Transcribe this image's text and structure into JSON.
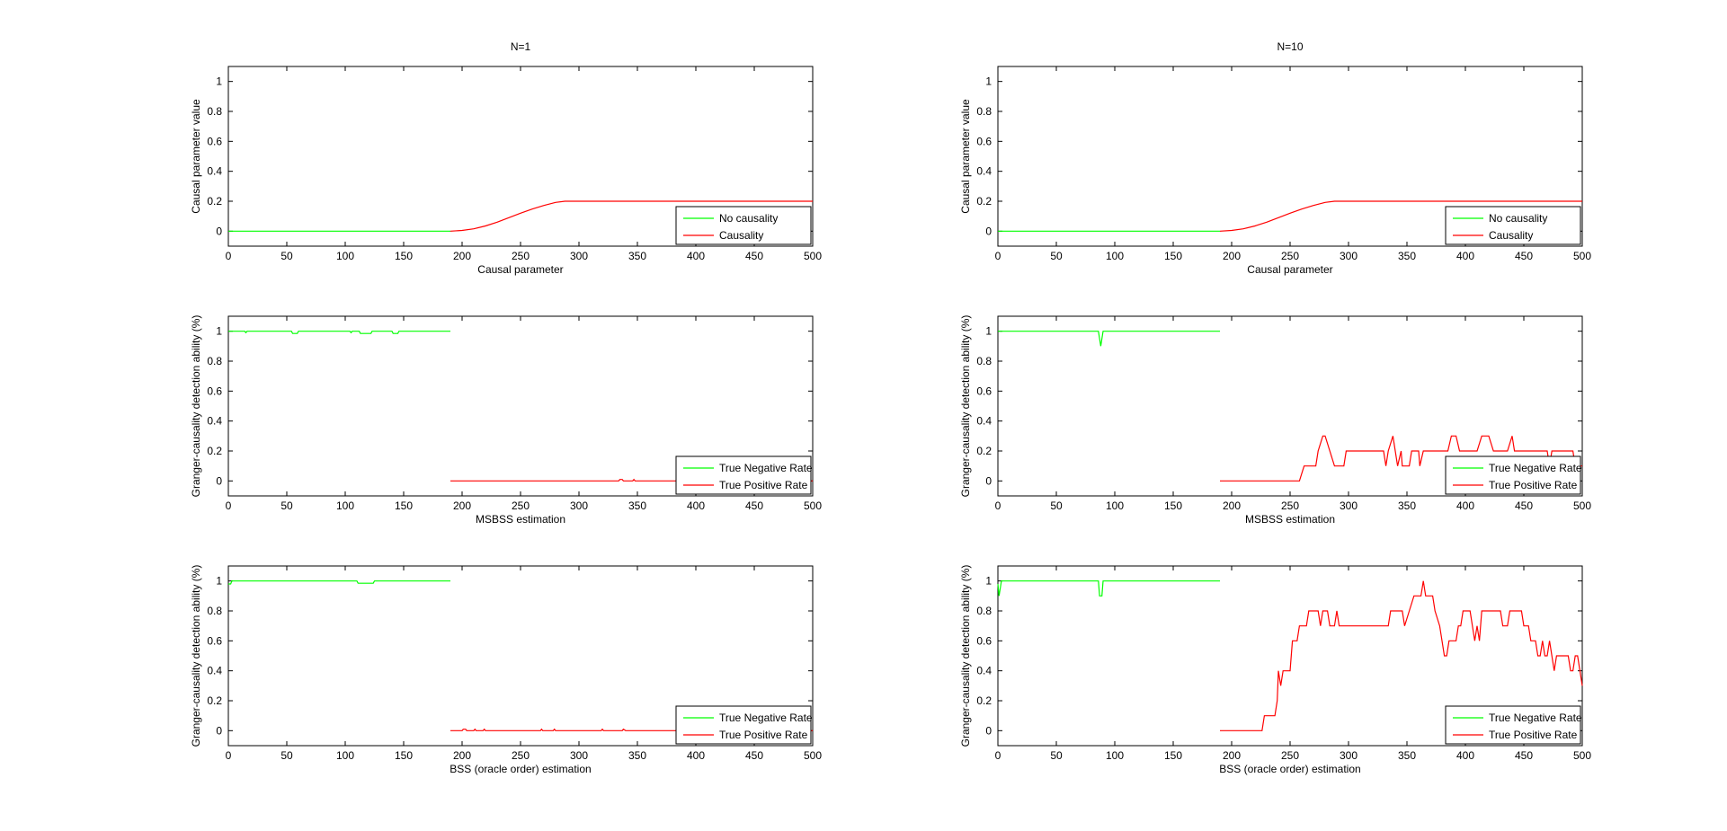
{
  "figure": {
    "columns": [
      {
        "title": "N=1"
      },
      {
        "title": "N=10"
      }
    ]
  },
  "colors": {
    "negative": "#00ff00",
    "positive": "#ff0000",
    "axis": "#000000"
  },
  "chart_data": [
    {
      "type": "line",
      "panel": "top-left",
      "title": "N=1",
      "xlabel": "Causal parameter",
      "ylabel": "Causal parameter value",
      "xlim": [
        0,
        500
      ],
      "ylim": [
        -0.1,
        1.1
      ],
      "xticks": [
        0,
        50,
        100,
        150,
        200,
        250,
        300,
        350,
        400,
        450,
        500
      ],
      "yticks": [
        0,
        0.2,
        0.4,
        0.6,
        0.8,
        1
      ],
      "legend": "bottom-right",
      "grid": false,
      "series": [
        {
          "name": "No causality",
          "color": "#00ff00",
          "points": [
            [
              0,
              0
            ],
            [
              190,
              0
            ]
          ]
        },
        {
          "name": "Causality",
          "color": "#ff0000",
          "points": [
            [
              190,
              0
            ],
            [
              200,
              0.005
            ],
            [
              210,
              0.016
            ],
            [
              220,
              0.035
            ],
            [
              230,
              0.06
            ],
            [
              240,
              0.09
            ],
            [
              250,
              0.12
            ],
            [
              260,
              0.148
            ],
            [
              270,
              0.172
            ],
            [
              280,
              0.192
            ],
            [
              288,
              0.2
            ],
            [
              500,
              0.2
            ]
          ]
        }
      ]
    },
    {
      "type": "line",
      "panel": "middle-left",
      "title": "",
      "xlabel": "MSBSS estimation",
      "ylabel": "Granger-causality detection ability (%)",
      "xlim": [
        0,
        500
      ],
      "ylim": [
        -0.1,
        1.1
      ],
      "xticks": [
        0,
        50,
        100,
        150,
        200,
        250,
        300,
        350,
        400,
        450,
        500
      ],
      "yticks": [
        0,
        0.2,
        0.4,
        0.6,
        0.8,
        1
      ],
      "legend": "bottom-right",
      "grid": false,
      "series": [
        {
          "name": "True Negative Rate",
          "color": "#00ff00",
          "points": [
            [
              0,
              1
            ],
            [
              14,
              1
            ],
            [
              15,
              0.99
            ],
            [
              16,
              1
            ],
            [
              54,
              1
            ],
            [
              55,
              0.985
            ],
            [
              59,
              0.985
            ],
            [
              60,
              1
            ],
            [
              104,
              1
            ],
            [
              105,
              0.99
            ],
            [
              106,
              1
            ],
            [
              112,
              1
            ],
            [
              113,
              0.985
            ],
            [
              122,
              0.985
            ],
            [
              123,
              1
            ],
            [
              140,
              1
            ],
            [
              141,
              0.985
            ],
            [
              145,
              0.985
            ],
            [
              146,
              1
            ],
            [
              190,
              1
            ]
          ]
        },
        {
          "name": "True Positive Rate",
          "color": "#ff0000",
          "points": [
            [
              190,
              0
            ],
            [
              334,
              0
            ],
            [
              335,
              0.01
            ],
            [
              337,
              0.01
            ],
            [
              338,
              0
            ],
            [
              346,
              0
            ],
            [
              347,
              0.01
            ],
            [
              348,
              0
            ],
            [
              500,
              0
            ]
          ]
        }
      ]
    },
    {
      "type": "line",
      "panel": "bottom-left",
      "title": "",
      "xlabel": "BSS (oracle order) estimation",
      "ylabel": "Granger-causality detection ability (%)",
      "xlim": [
        0,
        500
      ],
      "ylim": [
        -0.1,
        1.1
      ],
      "xticks": [
        0,
        50,
        100,
        150,
        200,
        250,
        300,
        350,
        400,
        450,
        500
      ],
      "yticks": [
        0,
        0.2,
        0.4,
        0.6,
        0.8,
        1
      ],
      "legend": "bottom-right",
      "grid": false,
      "series": [
        {
          "name": "True Negative Rate",
          "color": "#00ff00",
          "points": [
            [
              0,
              0.98
            ],
            [
              2,
              0.98
            ],
            [
              3,
              1
            ],
            [
              110,
              1
            ],
            [
              111,
              0.985
            ],
            [
              124,
              0.985
            ],
            [
              125,
              1
            ],
            [
              190,
              1
            ]
          ]
        },
        {
          "name": "True Positive Rate",
          "color": "#ff0000",
          "points": [
            [
              190,
              0
            ],
            [
              200,
              0
            ],
            [
              201,
              0.01
            ],
            [
              203,
              0.01
            ],
            [
              204,
              0
            ],
            [
              210,
              0
            ],
            [
              211,
              0.01
            ],
            [
              212,
              0
            ],
            [
              218,
              0
            ],
            [
              219,
              0.01
            ],
            [
              220,
              0
            ],
            [
              267,
              0
            ],
            [
              268,
              0.01
            ],
            [
              269,
              0
            ],
            [
              278,
              0
            ],
            [
              279,
              0.01
            ],
            [
              280,
              0
            ],
            [
              319,
              0
            ],
            [
              320,
              0.01
            ],
            [
              321,
              0
            ],
            [
              337,
              0
            ],
            [
              338,
              0.01
            ],
            [
              340,
              0
            ],
            [
              500,
              0
            ]
          ]
        }
      ]
    },
    {
      "type": "line",
      "panel": "top-right",
      "title": "N=10",
      "xlabel": "Causal parameter",
      "ylabel": "Causal parameter value",
      "xlim": [
        0,
        500
      ],
      "ylim": [
        -0.1,
        1.1
      ],
      "xticks": [
        0,
        50,
        100,
        150,
        200,
        250,
        300,
        350,
        400,
        450,
        500
      ],
      "yticks": [
        0,
        0.2,
        0.4,
        0.6,
        0.8,
        1
      ],
      "legend": "bottom-right",
      "grid": false,
      "series": [
        {
          "name": "No causality",
          "color": "#00ff00",
          "points": [
            [
              0,
              0
            ],
            [
              190,
              0
            ]
          ]
        },
        {
          "name": "Causality",
          "color": "#ff0000",
          "points": [
            [
              190,
              0
            ],
            [
              200,
              0.005
            ],
            [
              210,
              0.016
            ],
            [
              220,
              0.035
            ],
            [
              230,
              0.06
            ],
            [
              240,
              0.09
            ],
            [
              250,
              0.12
            ],
            [
              260,
              0.148
            ],
            [
              270,
              0.172
            ],
            [
              280,
              0.192
            ],
            [
              288,
              0.2
            ],
            [
              500,
              0.2
            ]
          ]
        }
      ]
    },
    {
      "type": "line",
      "panel": "middle-right",
      "title": "",
      "xlabel": "MSBSS estimation",
      "ylabel": "Granger-causality detection ability (%)",
      "xlim": [
        0,
        500
      ],
      "ylim": [
        -0.1,
        1.1
      ],
      "xticks": [
        0,
        50,
        100,
        150,
        200,
        250,
        300,
        350,
        400,
        450,
        500
      ],
      "yticks": [
        0,
        0.2,
        0.4,
        0.6,
        0.8,
        1
      ],
      "legend": "bottom-right",
      "grid": false,
      "series": [
        {
          "name": "True Negative Rate",
          "color": "#00ff00",
          "points": [
            [
              0,
              1
            ],
            [
              86,
              1
            ],
            [
              88,
              0.9
            ],
            [
              90,
              1
            ],
            [
              190,
              1
            ]
          ]
        },
        {
          "name": "True Positive Rate",
          "color": "#ff0000",
          "points": [
            [
              190,
              0
            ],
            [
              258,
              0
            ],
            [
              262,
              0.1
            ],
            [
              272,
              0.1
            ],
            [
              274,
              0.2
            ],
            [
              278,
              0.3
            ],
            [
              280,
              0.3
            ],
            [
              284,
              0.2
            ],
            [
              288,
              0.1
            ],
            [
              296,
              0.1
            ],
            [
              298,
              0.2
            ],
            [
              330,
              0.2
            ],
            [
              332,
              0.1
            ],
            [
              334,
              0.2
            ],
            [
              338,
              0.3
            ],
            [
              340,
              0.2
            ],
            [
              342,
              0.1
            ],
            [
              345,
              0.2
            ],
            [
              346,
              0.1
            ],
            [
              352,
              0.1
            ],
            [
              354,
              0.2
            ],
            [
              360,
              0.2
            ],
            [
              361,
              0.1
            ],
            [
              364,
              0.2
            ],
            [
              385,
              0.2
            ],
            [
              388,
              0.3
            ],
            [
              392,
              0.3
            ],
            [
              395,
              0.2
            ],
            [
              410,
              0.2
            ],
            [
              414,
              0.3
            ],
            [
              420,
              0.3
            ],
            [
              424,
              0.2
            ],
            [
              436,
              0.2
            ],
            [
              440,
              0.3
            ],
            [
              442,
              0.2
            ],
            [
              470,
              0.2
            ],
            [
              472,
              0.1
            ],
            [
              474,
              0.2
            ],
            [
              492,
              0.2
            ],
            [
              494,
              0.1
            ],
            [
              500,
              0.1
            ]
          ]
        }
      ]
    },
    {
      "type": "line",
      "panel": "bottom-right",
      "title": "",
      "xlabel": "BSS (oracle order) estimation",
      "ylabel": "Granger-causality detection ability (%)",
      "xlim": [
        0,
        500
      ],
      "ylim": [
        -0.1,
        1.1
      ],
      "xticks": [
        0,
        50,
        100,
        150,
        200,
        250,
        300,
        350,
        400,
        450,
        500
      ],
      "yticks": [
        0,
        0.2,
        0.4,
        0.6,
        0.8,
        1
      ],
      "legend": "bottom-right",
      "grid": false,
      "series": [
        {
          "name": "True Negative Rate",
          "color": "#00ff00",
          "points": [
            [
              0,
              0.98
            ],
            [
              1,
              0.9
            ],
            [
              3,
              1
            ],
            [
              86,
              1
            ],
            [
              87,
              0.9
            ],
            [
              89,
              0.9
            ],
            [
              90,
              1
            ],
            [
              190,
              1
            ]
          ]
        },
        {
          "name": "True Positive Rate",
          "color": "#ff0000",
          "points": [
            [
              190,
              0
            ],
            [
              226,
              0
            ],
            [
              228,
              0.1
            ],
            [
              237,
              0.1
            ],
            [
              239,
              0.2
            ],
            [
              240,
              0.4
            ],
            [
              242,
              0.3
            ],
            [
              244,
              0.4
            ],
            [
              250,
              0.4
            ],
            [
              252,
              0.6
            ],
            [
              256,
              0.6
            ],
            [
              258,
              0.7
            ],
            [
              264,
              0.7
            ],
            [
              266,
              0.8
            ],
            [
              274,
              0.8
            ],
            [
              276,
              0.7
            ],
            [
              278,
              0.8
            ],
            [
              282,
              0.8
            ],
            [
              284,
              0.7
            ],
            [
              288,
              0.7
            ],
            [
              290,
              0.8
            ],
            [
              292,
              0.7
            ],
            [
              300,
              0.7
            ],
            [
              302,
              0.7
            ],
            [
              334,
              0.7
            ],
            [
              336,
              0.8
            ],
            [
              346,
              0.8
            ],
            [
              348,
              0.7
            ],
            [
              352,
              0.8
            ],
            [
              356,
              0.9
            ],
            [
              362,
              0.9
            ],
            [
              364,
              1.0
            ],
            [
              366,
              0.9
            ],
            [
              372,
              0.9
            ],
            [
              374,
              0.8
            ],
            [
              378,
              0.7
            ],
            [
              380,
              0.6
            ],
            [
              382,
              0.5
            ],
            [
              384,
              0.5
            ],
            [
              386,
              0.6
            ],
            [
              392,
              0.6
            ],
            [
              394,
              0.7
            ],
            [
              396,
              0.7
            ],
            [
              398,
              0.8
            ],
            [
              404,
              0.8
            ],
            [
              406,
              0.7
            ],
            [
              408,
              0.6
            ],
            [
              410,
              0.7
            ],
            [
              412,
              0.6
            ],
            [
              414,
              0.8
            ],
            [
              430,
              0.8
            ],
            [
              432,
              0.7
            ],
            [
              436,
              0.7
            ],
            [
              438,
              0.8
            ],
            [
              448,
              0.8
            ],
            [
              450,
              0.7
            ],
            [
              454,
              0.7
            ],
            [
              456,
              0.6
            ],
            [
              460,
              0.6
            ],
            [
              462,
              0.5
            ],
            [
              464,
              0.5
            ],
            [
              466,
              0.6
            ],
            [
              468,
              0.5
            ],
            [
              470,
              0.5
            ],
            [
              472,
              0.6
            ],
            [
              474,
              0.5
            ],
            [
              476,
              0.4
            ],
            [
              478,
              0.5
            ],
            [
              482,
              0.5
            ],
            [
              484,
              0.5
            ],
            [
              488,
              0.5
            ],
            [
              490,
              0.4
            ],
            [
              492,
              0.4
            ],
            [
              494,
              0.5
            ],
            [
              496,
              0.5
            ],
            [
              500,
              0.3
            ]
          ]
        }
      ]
    }
  ]
}
